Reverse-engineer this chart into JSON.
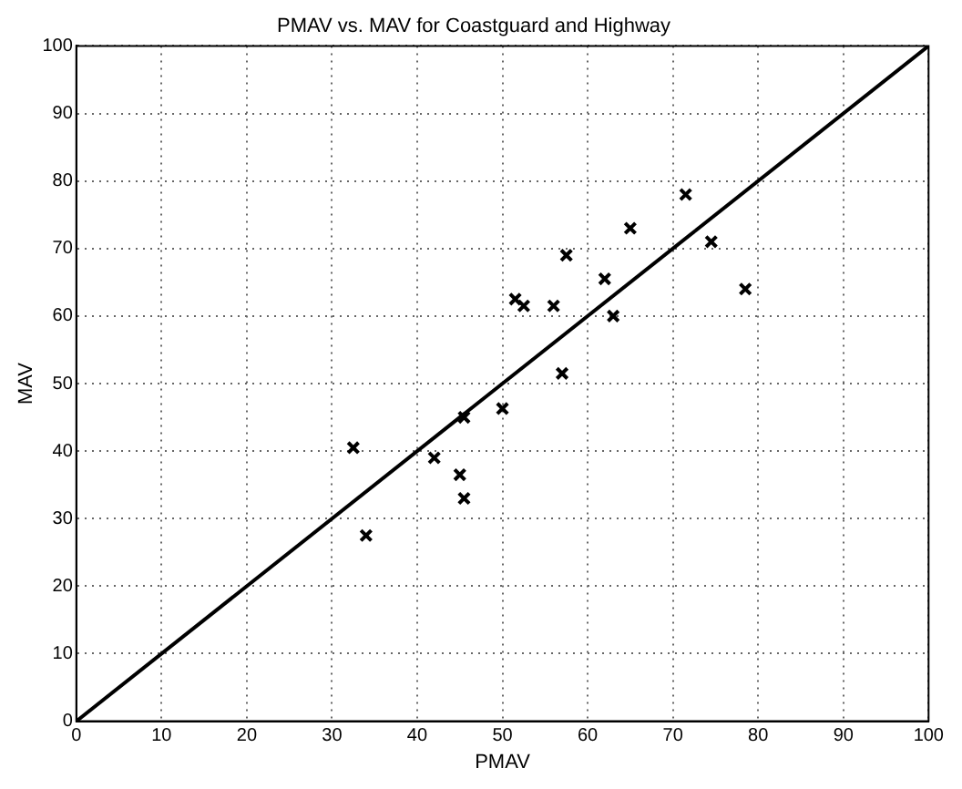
{
  "chart_data": {
    "type": "scatter",
    "title": "PMAV vs. MAV for Coastguard and Highway",
    "xlabel": "PMAV",
    "ylabel": "MAV",
    "xlim": [
      0,
      100
    ],
    "ylim": [
      0,
      100
    ],
    "xticks": [
      0,
      10,
      20,
      30,
      40,
      50,
      60,
      70,
      80,
      90,
      100
    ],
    "yticks": [
      0,
      10,
      20,
      30,
      40,
      50,
      60,
      70,
      80,
      90,
      100
    ],
    "grid": true,
    "series": [
      {
        "type": "scatter",
        "marker": "cross",
        "color": "#000000",
        "x": [
          32.5,
          34,
          42,
          45,
          45.5,
          45.5,
          50,
          51.5,
          52.5,
          56,
          57,
          57.5,
          62,
          63,
          65,
          71.5,
          74.5,
          78.5
        ],
        "values": [
          40.5,
          27.5,
          39,
          36.5,
          45,
          33,
          46.3,
          62.5,
          61.5,
          61.5,
          51.5,
          69,
          65.5,
          60,
          73,
          78,
          71,
          64
        ]
      },
      {
        "type": "line",
        "marker": "none",
        "color": "#000000",
        "x": [
          0,
          100
        ],
        "values": [
          0,
          100
        ]
      }
    ]
  }
}
